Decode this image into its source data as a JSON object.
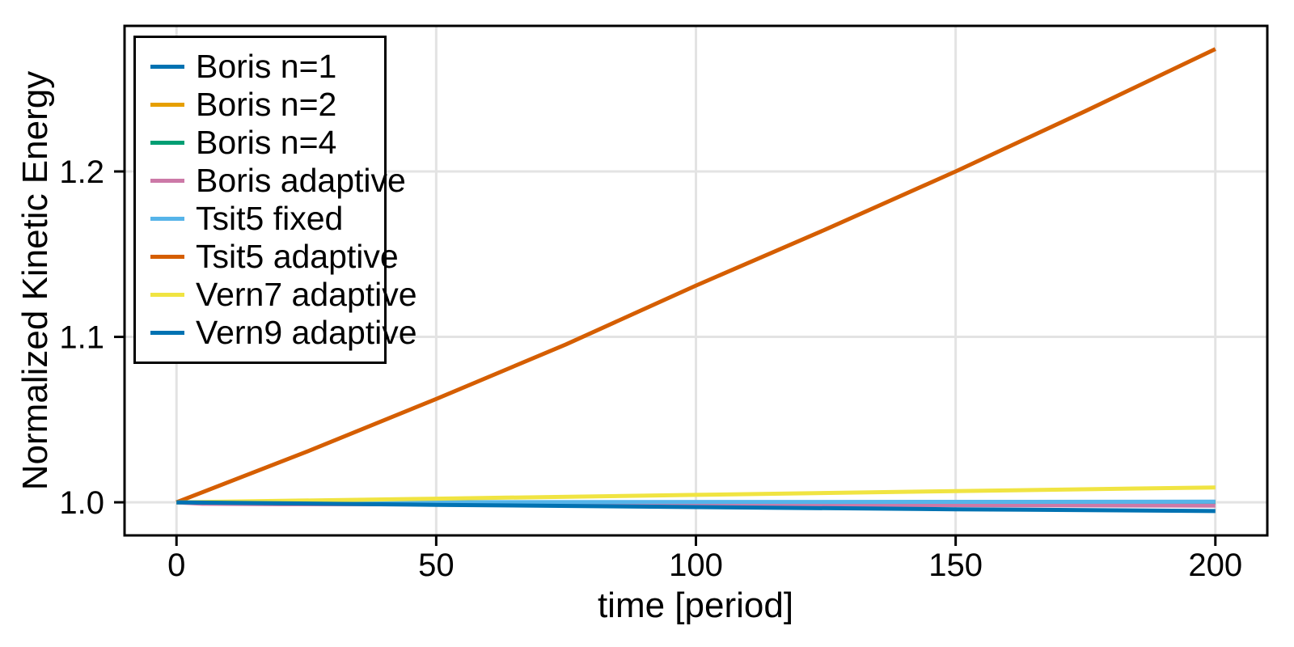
{
  "figure": {
    "background": "#ffffff",
    "text_color": "#000000"
  },
  "chart_data": {
    "type": "line",
    "title": "",
    "xlabel": "time [period]",
    "ylabel": "Normalized Kinetic Energy",
    "xlim": [
      -10,
      210
    ],
    "ylim": [
      0.98,
      1.288
    ],
    "xticks": [
      0,
      50,
      100,
      150,
      200
    ],
    "xtick_labels": [
      "0",
      "50",
      "100",
      "150",
      "200"
    ],
    "yticks": [
      1.0,
      1.1,
      1.2
    ],
    "ytick_labels": [
      "1.0",
      "1.1",
      "1.2"
    ],
    "grid": true,
    "grid_color": "#e3e3e3",
    "axis_color": "#000000",
    "line_width": 5,
    "legend_position": "top-left",
    "series": [
      {
        "name": "Boris n=1",
        "color": "#0072B2",
        "points": [
          [
            0,
            1.0
          ],
          [
            200,
            1.0
          ]
        ]
      },
      {
        "name": "Boris n=2",
        "color": "#E69F00",
        "points": [
          [
            0,
            1.0
          ],
          [
            200,
            1.0
          ]
        ]
      },
      {
        "name": "Boris n=4",
        "color": "#009E73",
        "points": [
          [
            0,
            1.0
          ],
          [
            200,
            1.0
          ]
        ]
      },
      {
        "name": "Boris adaptive",
        "color": "#CC79A7",
        "points": [
          [
            0,
            1.0
          ],
          [
            5,
            0.9991
          ],
          [
            20,
            0.9988
          ],
          [
            50,
            0.9987
          ],
          [
            100,
            0.9985
          ],
          [
            150,
            0.9983
          ],
          [
            200,
            0.998
          ]
        ]
      },
      {
        "name": "Tsit5 fixed",
        "color": "#56B4E9",
        "points": [
          [
            0,
            1.0
          ],
          [
            200,
            1.0004
          ]
        ]
      },
      {
        "name": "Tsit5 adaptive",
        "color": "#D55E00",
        "points": [
          [
            0,
            1.0
          ],
          [
            25,
            1.0305
          ],
          [
            50,
            1.0625
          ],
          [
            75,
            1.0955
          ],
          [
            100,
            1.131
          ],
          [
            125,
            1.165
          ],
          [
            150,
            1.2
          ],
          [
            175,
            1.2365
          ],
          [
            200,
            1.274
          ]
        ]
      },
      {
        "name": "Vern7 adaptive",
        "color": "#F0E442",
        "points": [
          [
            0,
            1.0
          ],
          [
            50,
            1.0022
          ],
          [
            100,
            1.0045
          ],
          [
            150,
            1.0068
          ],
          [
            200,
            1.009
          ]
        ]
      },
      {
        "name": "Vern9 adaptive",
        "color": "#0072B2",
        "points": [
          [
            0,
            1.0
          ],
          [
            50,
            0.9985
          ],
          [
            100,
            0.9971
          ],
          [
            150,
            0.9958
          ],
          [
            200,
            0.9947
          ]
        ]
      }
    ]
  }
}
